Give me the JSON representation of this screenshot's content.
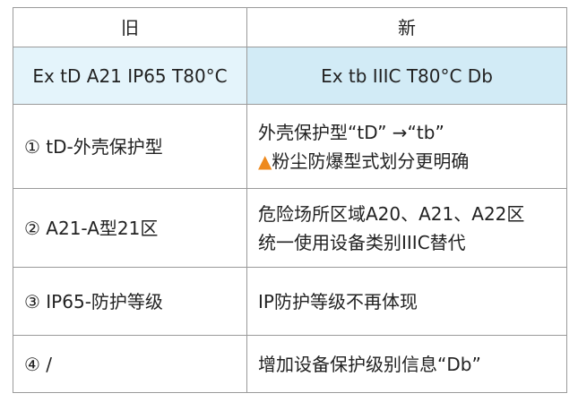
{
  "header": {
    "old": "旧",
    "new": "新"
  },
  "marking": {
    "old": "Ex tD A21 IP65 T80°C",
    "new": "Ex tb IIIC T80°C Db"
  },
  "rows": [
    {
      "old": "① tD-外壳保护型",
      "new": [
        "外壳保护型“tD” →“tb”",
        "粉尘防爆型式划分更明确"
      ],
      "warning_icon": "▲"
    },
    {
      "old": "② A21-A型21区",
      "new": [
        "危险场所区域A20、A21、A22区",
        "统一使用设备类别IIIC替代"
      ]
    },
    {
      "old": "③ IP65-防护等级",
      "new": [
        "IP防护等级不再体现"
      ]
    },
    {
      "old": "④ /",
      "new": [
        "增加设备保护级别信息“Db”"
      ]
    }
  ],
  "colors": {
    "warning": "#ee8a1e",
    "marking_old_bg": "#e4f4fb",
    "marking_new_bg": "#d2ebf6"
  }
}
